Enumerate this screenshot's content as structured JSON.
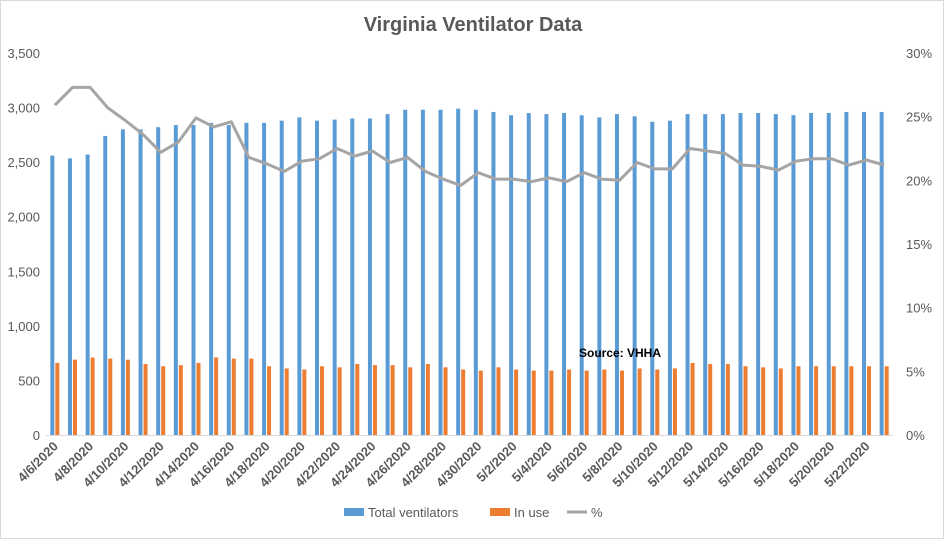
{
  "chart_data": {
    "type": "bar",
    "title": "Virginia Ventilator Data",
    "annotation": "Source: VHHA",
    "categories": [
      "4/6/2020",
      "4/7/2020",
      "4/8/2020",
      "4/9/2020",
      "4/10/2020",
      "4/11/2020",
      "4/12/2020",
      "4/13/2020",
      "4/14/2020",
      "4/15/2020",
      "4/16/2020",
      "4/17/2020",
      "4/18/2020",
      "4/19/2020",
      "4/20/2020",
      "4/21/2020",
      "4/22/2020",
      "4/23/2020",
      "4/24/2020",
      "4/25/2020",
      "4/26/2020",
      "4/27/2020",
      "4/28/2020",
      "4/29/2020",
      "4/30/2020",
      "5/1/2020",
      "5/2/2020",
      "5/3/2020",
      "5/4/2020",
      "5/5/2020",
      "5/6/2020",
      "5/7/2020",
      "5/8/2020",
      "5/9/2020",
      "5/10/2020",
      "5/11/2020",
      "5/12/2020",
      "5/13/2020",
      "5/14/2020",
      "5/15/2020",
      "5/16/2020",
      "5/17/2020",
      "5/18/2020",
      "5/19/2020",
      "5/20/2020",
      "5/21/2020",
      "5/22/2020",
      "5/23/2020"
    ],
    "x_tick_labels": [
      "4/6/2020",
      "4/8/2020",
      "4/10/2020",
      "4/12/2020",
      "4/14/2020",
      "4/16/2020",
      "4/18/2020",
      "4/20/2020",
      "4/22/2020",
      "4/24/2020",
      "4/26/2020",
      "4/28/2020",
      "4/30/2020",
      "5/2/2020",
      "5/4/2020",
      "5/6/2020",
      "5/8/2020",
      "5/10/2020",
      "5/12/2020",
      "5/14/2020",
      "5/16/2020",
      "5/18/2020",
      "5/20/2020",
      "5/22/2020"
    ],
    "series": [
      {
        "name": "Total ventilators",
        "type": "bar",
        "axis": "left",
        "color": "#5b9bd5",
        "values": [
          2560,
          2535,
          2570,
          2740,
          2800,
          2800,
          2820,
          2840,
          2840,
          2860,
          2840,
          2860,
          2860,
          2880,
          2910,
          2880,
          2890,
          2900,
          2900,
          2940,
          2980,
          2980,
          2980,
          2990,
          2980,
          2960,
          2930,
          2950,
          2940,
          2950,
          2930,
          2910,
          2940,
          2920,
          2870,
          2880,
          2940,
          2940,
          2940,
          2950,
          2950,
          2940,
          2930,
          2950,
          2950,
          2960,
          2960,
          2960
        ]
      },
      {
        "name": "In use",
        "type": "bar",
        "axis": "left",
        "color": "#ed7d31",
        "values": [
          660,
          690,
          710,
          700,
          690,
          650,
          630,
          640,
          660,
          710,
          700,
          700,
          630,
          610,
          600,
          630,
          620,
          650,
          640,
          640,
          620,
          650,
          620,
          600,
          590,
          620,
          600,
          590,
          590,
          600,
          590,
          600,
          590,
          610,
          600,
          610,
          660,
          650,
          650,
          630,
          620,
          610,
          630,
          630,
          630,
          630,
          630,
          630
        ]
      },
      {
        "name": "%",
        "type": "line",
        "axis": "right",
        "color": "#a5a5a5",
        "values": [
          0.259,
          0.273,
          0.273,
          0.257,
          0.247,
          0.236,
          0.222,
          0.23,
          0.249,
          0.242,
          0.246,
          0.218,
          0.213,
          0.207,
          0.215,
          0.217,
          0.225,
          0.219,
          0.223,
          0.214,
          0.218,
          0.207,
          0.201,
          0.196,
          0.206,
          0.201,
          0.201,
          0.199,
          0.202,
          0.199,
          0.206,
          0.201,
          0.2,
          0.214,
          0.209,
          0.209,
          0.225,
          0.223,
          0.221,
          0.212,
          0.211,
          0.208,
          0.215,
          0.217,
          0.217,
          0.212,
          0.216,
          0.212
        ]
      }
    ],
    "y_left": {
      "min": 0,
      "max": 3500,
      "ticks": [
        "0",
        "500",
        "1,000",
        "1,500",
        "2,000",
        "2,500",
        "3,000",
        "3,500"
      ]
    },
    "y_right": {
      "min": 0,
      "max": 0.3,
      "ticks": [
        "0%",
        "5%",
        "10%",
        "15%",
        "20%",
        "25%",
        "30%"
      ]
    },
    "grid": false,
    "legend": {
      "position": "bottom",
      "items": [
        "Total ventilators",
        "In use",
        "%"
      ]
    }
  }
}
